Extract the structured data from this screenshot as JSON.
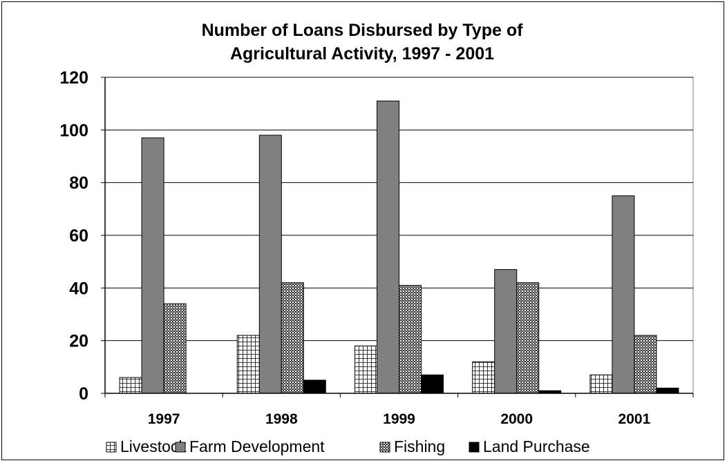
{
  "chart_data": {
    "type": "bar",
    "title_lines": [
      "Number of Loans Disbursed by Type of",
      "Agricultural Activity, 1997 - 2001"
    ],
    "categories": [
      "1997",
      "1998",
      "1999",
      "2000",
      "2001"
    ],
    "series": [
      {
        "name": "Livestock",
        "values": [
          6,
          22,
          18,
          12,
          7
        ],
        "pattern": "grid"
      },
      {
        "name": "Farm Development",
        "values": [
          97,
          98,
          111,
          47,
          75
        ],
        "pattern": "solid-gray"
      },
      {
        "name": "Fishing",
        "values": [
          34,
          42,
          41,
          42,
          22
        ],
        "pattern": "checker"
      },
      {
        "name": "Land Purchase",
        "values": [
          0,
          5,
          7,
          1,
          2
        ],
        "pattern": "solid-black"
      }
    ],
    "ylim": [
      0,
      120
    ],
    "yticks": [
      0,
      20,
      40,
      60,
      80,
      100,
      120
    ],
    "ytick_labels": [
      "0",
      "20",
      "40",
      "60",
      "80",
      "100",
      "120"
    ],
    "xlabel": "",
    "ylabel": "",
    "grid": true,
    "legend_position": "bottom",
    "colors": {
      "farm_development": "#808080",
      "land_purchase": "#000000",
      "grid_line": "#000000",
      "background": "#ffffff"
    }
  }
}
